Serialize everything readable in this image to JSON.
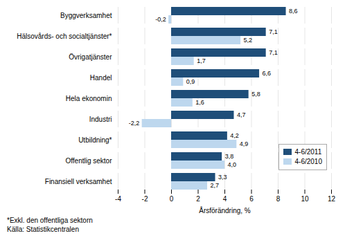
{
  "chart_data": {
    "type": "bar",
    "orientation": "horizontal",
    "categories": [
      "Byggverksamhet",
      "Hälsovårds- och socialtjänster*",
      "Övrigatjänster",
      "Handel",
      "Hela ekonomin",
      "Industri",
      "Utbildning*",
      "Offentlig sektor",
      "Finansiell verksamhet"
    ],
    "series": [
      {
        "name": "4-6/2011",
        "color": "#1F4E79",
        "values": [
          8.6,
          7.1,
          7.1,
          6.6,
          5.8,
          4.7,
          4.2,
          3.8,
          3.3
        ],
        "value_labels": [
          "8,6",
          "7,1",
          "7,1",
          "6,6",
          "5,8",
          "4,7",
          "4,2",
          "3,8",
          "3,3"
        ]
      },
      {
        "name": "4-6/2010",
        "color": "#BDD7EE",
        "values": [
          -0.2,
          5.2,
          1.7,
          0.9,
          1.6,
          -2.2,
          4.9,
          4.0,
          2.7
        ],
        "value_labels": [
          "-0,2",
          "5,2",
          "1,7",
          "0,9",
          "1,6",
          "-2,2",
          "4,9",
          "4,0",
          "2,7"
        ]
      }
    ],
    "xlabel": "Årsförändring, %",
    "xlim": [
      -4,
      12
    ],
    "xticks": [
      -4,
      -2,
      0,
      2,
      4,
      6,
      8,
      10,
      12
    ],
    "grid": true,
    "legend": "right",
    "data_labels": true,
    "annotations": [
      "*Exkl. den offentliga sektorn",
      "Källa: Statistikcentralen"
    ]
  }
}
